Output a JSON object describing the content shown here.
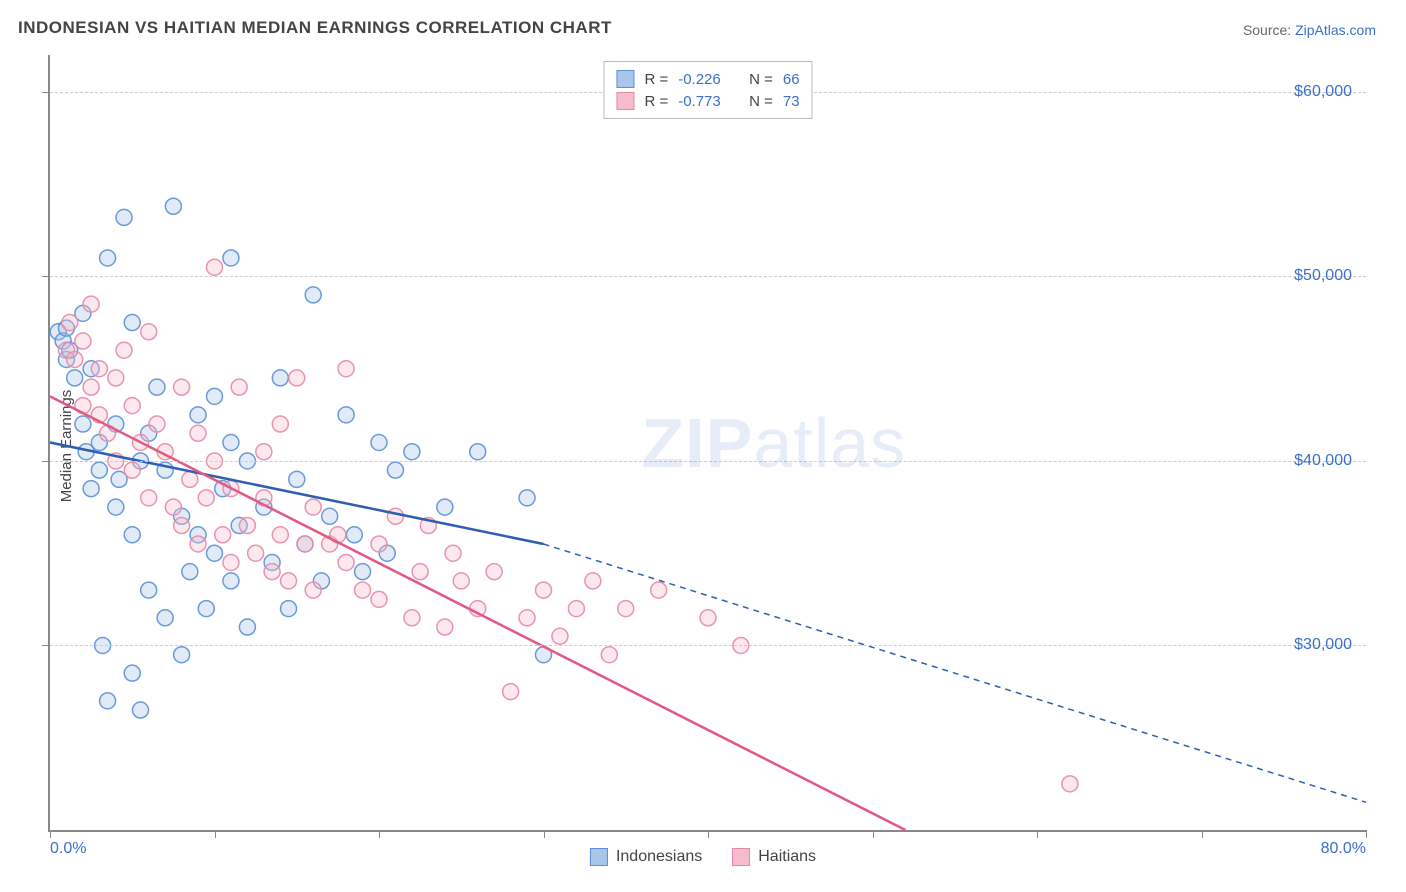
{
  "title": "INDONESIAN VS HAITIAN MEDIAN EARNINGS CORRELATION CHART",
  "source_label": "Source:",
  "source_value": "ZipAtlas.com",
  "ylabel": "Median Earnings",
  "watermark_a": "ZIP",
  "watermark_b": "atlas",
  "chart": {
    "type": "scatter",
    "xlim": [
      0,
      80
    ],
    "ylim": [
      20000,
      62000
    ],
    "x_tick_positions": [
      0,
      10,
      20,
      30,
      40,
      50,
      60,
      70,
      80
    ],
    "x_tick_labels_shown": {
      "0": "0.0%",
      "80": "80.0%"
    },
    "y_tick_positions": [
      30000,
      40000,
      50000,
      60000
    ],
    "y_tick_labels": {
      "30000": "$30,000",
      "40000": "$40,000",
      "50000": "$50,000",
      "60000": "$60,000"
    },
    "y_gridlines": [
      30000,
      40000,
      50000,
      60000
    ],
    "background_color": "#ffffff",
    "grid_color": "#cccccc",
    "axis_color": "#888888",
    "tick_label_color": "#3b6fc9",
    "marker_radius": 8,
    "marker_fill_opacity": 0.35,
    "marker_stroke_opacity": 0.9,
    "series": [
      {
        "name": "Indonesians",
        "color_stroke": "#5b8fd6",
        "color_fill": "#a8c5ea",
        "R": "-0.226",
        "N": "66",
        "trend_solid": {
          "x1": 0,
          "y1": 41000,
          "x2": 30,
          "y2": 35500
        },
        "trend_dashed": {
          "x1": 30,
          "y1": 35500,
          "x2": 80,
          "y2": 21500
        },
        "trend_color": "#2c5fb3",
        "trend_width": 2.5,
        "points": [
          [
            0.5,
            47000
          ],
          [
            0.8,
            46500
          ],
          [
            1,
            47200
          ],
          [
            1,
            45500
          ],
          [
            1.2,
            46000
          ],
          [
            1.5,
            44500
          ],
          [
            2,
            42000
          ],
          [
            2,
            48000
          ],
          [
            2.2,
            40500
          ],
          [
            2.5,
            38500
          ],
          [
            2.5,
            45000
          ],
          [
            3,
            41000
          ],
          [
            3,
            39500
          ],
          [
            3.2,
            30000
          ],
          [
            3.5,
            27000
          ],
          [
            3.5,
            51000
          ],
          [
            4,
            37500
          ],
          [
            4,
            42000
          ],
          [
            4.2,
            39000
          ],
          [
            4.5,
            53200
          ],
          [
            5,
            47500
          ],
          [
            5,
            36000
          ],
          [
            5,
            28500
          ],
          [
            5.5,
            26500
          ],
          [
            5.5,
            40000
          ],
          [
            6,
            33000
          ],
          [
            6,
            41500
          ],
          [
            6.5,
            44000
          ],
          [
            7,
            39500
          ],
          [
            7,
            31500
          ],
          [
            7.5,
            53800
          ],
          [
            8,
            37000
          ],
          [
            8,
            29500
          ],
          [
            8.5,
            34000
          ],
          [
            9,
            42500
          ],
          [
            9,
            36000
          ],
          [
            9.5,
            32000
          ],
          [
            10,
            43500
          ],
          [
            10,
            35000
          ],
          [
            10.5,
            38500
          ],
          [
            11,
            33500
          ],
          [
            11,
            41000
          ],
          [
            11,
            51000
          ],
          [
            11.5,
            36500
          ],
          [
            12,
            40000
          ],
          [
            12,
            31000
          ],
          [
            13,
            37500
          ],
          [
            13.5,
            34500
          ],
          [
            14,
            44500
          ],
          [
            14.5,
            32000
          ],
          [
            15,
            39000
          ],
          [
            15.5,
            35500
          ],
          [
            16,
            49000
          ],
          [
            16.5,
            33500
          ],
          [
            17,
            37000
          ],
          [
            18,
            42500
          ],
          [
            18.5,
            36000
          ],
          [
            19,
            34000
          ],
          [
            20,
            41000
          ],
          [
            20.5,
            35000
          ],
          [
            21,
            39500
          ],
          [
            22,
            40500
          ],
          [
            24,
            37500
          ],
          [
            26,
            40500
          ],
          [
            29,
            38000
          ],
          [
            30,
            29500
          ]
        ]
      },
      {
        "name": "Haitians",
        "color_stroke": "#e68aa6",
        "color_fill": "#f5bccb",
        "R": "-0.773",
        "N": "73",
        "trend_solid": {
          "x1": 0,
          "y1": 43500,
          "x2": 52,
          "y2": 20000
        },
        "trend_dashed": null,
        "trend_color": "#e05a82",
        "trend_width": 2.5,
        "points": [
          [
            1,
            46000
          ],
          [
            1.2,
            47500
          ],
          [
            1.5,
            45500
          ],
          [
            2,
            43000
          ],
          [
            2,
            46500
          ],
          [
            2.5,
            44000
          ],
          [
            2.5,
            48500
          ],
          [
            3,
            42500
          ],
          [
            3,
            45000
          ],
          [
            3.5,
            41500
          ],
          [
            4,
            44500
          ],
          [
            4,
            40000
          ],
          [
            4.5,
            46000
          ],
          [
            5,
            39500
          ],
          [
            5,
            43000
          ],
          [
            5.5,
            41000
          ],
          [
            6,
            47000
          ],
          [
            6,
            38000
          ],
          [
            6.5,
            42000
          ],
          [
            7,
            40500
          ],
          [
            7.5,
            37500
          ],
          [
            8,
            44000
          ],
          [
            8,
            36500
          ],
          [
            8.5,
            39000
          ],
          [
            9,
            41500
          ],
          [
            9,
            35500
          ],
          [
            9.5,
            38000
          ],
          [
            10,
            40000
          ],
          [
            10,
            50500
          ],
          [
            10.5,
            36000
          ],
          [
            11,
            38500
          ],
          [
            11,
            34500
          ],
          [
            11.5,
            44000
          ],
          [
            12,
            36500
          ],
          [
            12.5,
            35000
          ],
          [
            13,
            38000
          ],
          [
            13,
            40500
          ],
          [
            13.5,
            34000
          ],
          [
            14,
            36000
          ],
          [
            14,
            42000
          ],
          [
            14.5,
            33500
          ],
          [
            15,
            44500
          ],
          [
            15.5,
            35500
          ],
          [
            16,
            37500
          ],
          [
            16,
            33000
          ],
          [
            17,
            35500
          ],
          [
            17.5,
            36000
          ],
          [
            18,
            34500
          ],
          [
            18,
            45000
          ],
          [
            19,
            33000
          ],
          [
            20,
            35500
          ],
          [
            20,
            32500
          ],
          [
            21,
            37000
          ],
          [
            22,
            31500
          ],
          [
            22.5,
            34000
          ],
          [
            23,
            36500
          ],
          [
            24,
            31000
          ],
          [
            24.5,
            35000
          ],
          [
            25,
            33500
          ],
          [
            26,
            32000
          ],
          [
            27,
            34000
          ],
          [
            28,
            27500
          ],
          [
            29,
            31500
          ],
          [
            30,
            33000
          ],
          [
            31,
            30500
          ],
          [
            32,
            32000
          ],
          [
            33,
            33500
          ],
          [
            34,
            29500
          ],
          [
            35,
            32000
          ],
          [
            37,
            33000
          ],
          [
            40,
            31500
          ],
          [
            42,
            30000
          ],
          [
            62,
            22500
          ]
        ]
      }
    ]
  },
  "legend_top": {
    "r_label": "R =",
    "n_label": "N ="
  },
  "legend_bottom_items": [
    "Indonesians",
    "Haitians"
  ]
}
